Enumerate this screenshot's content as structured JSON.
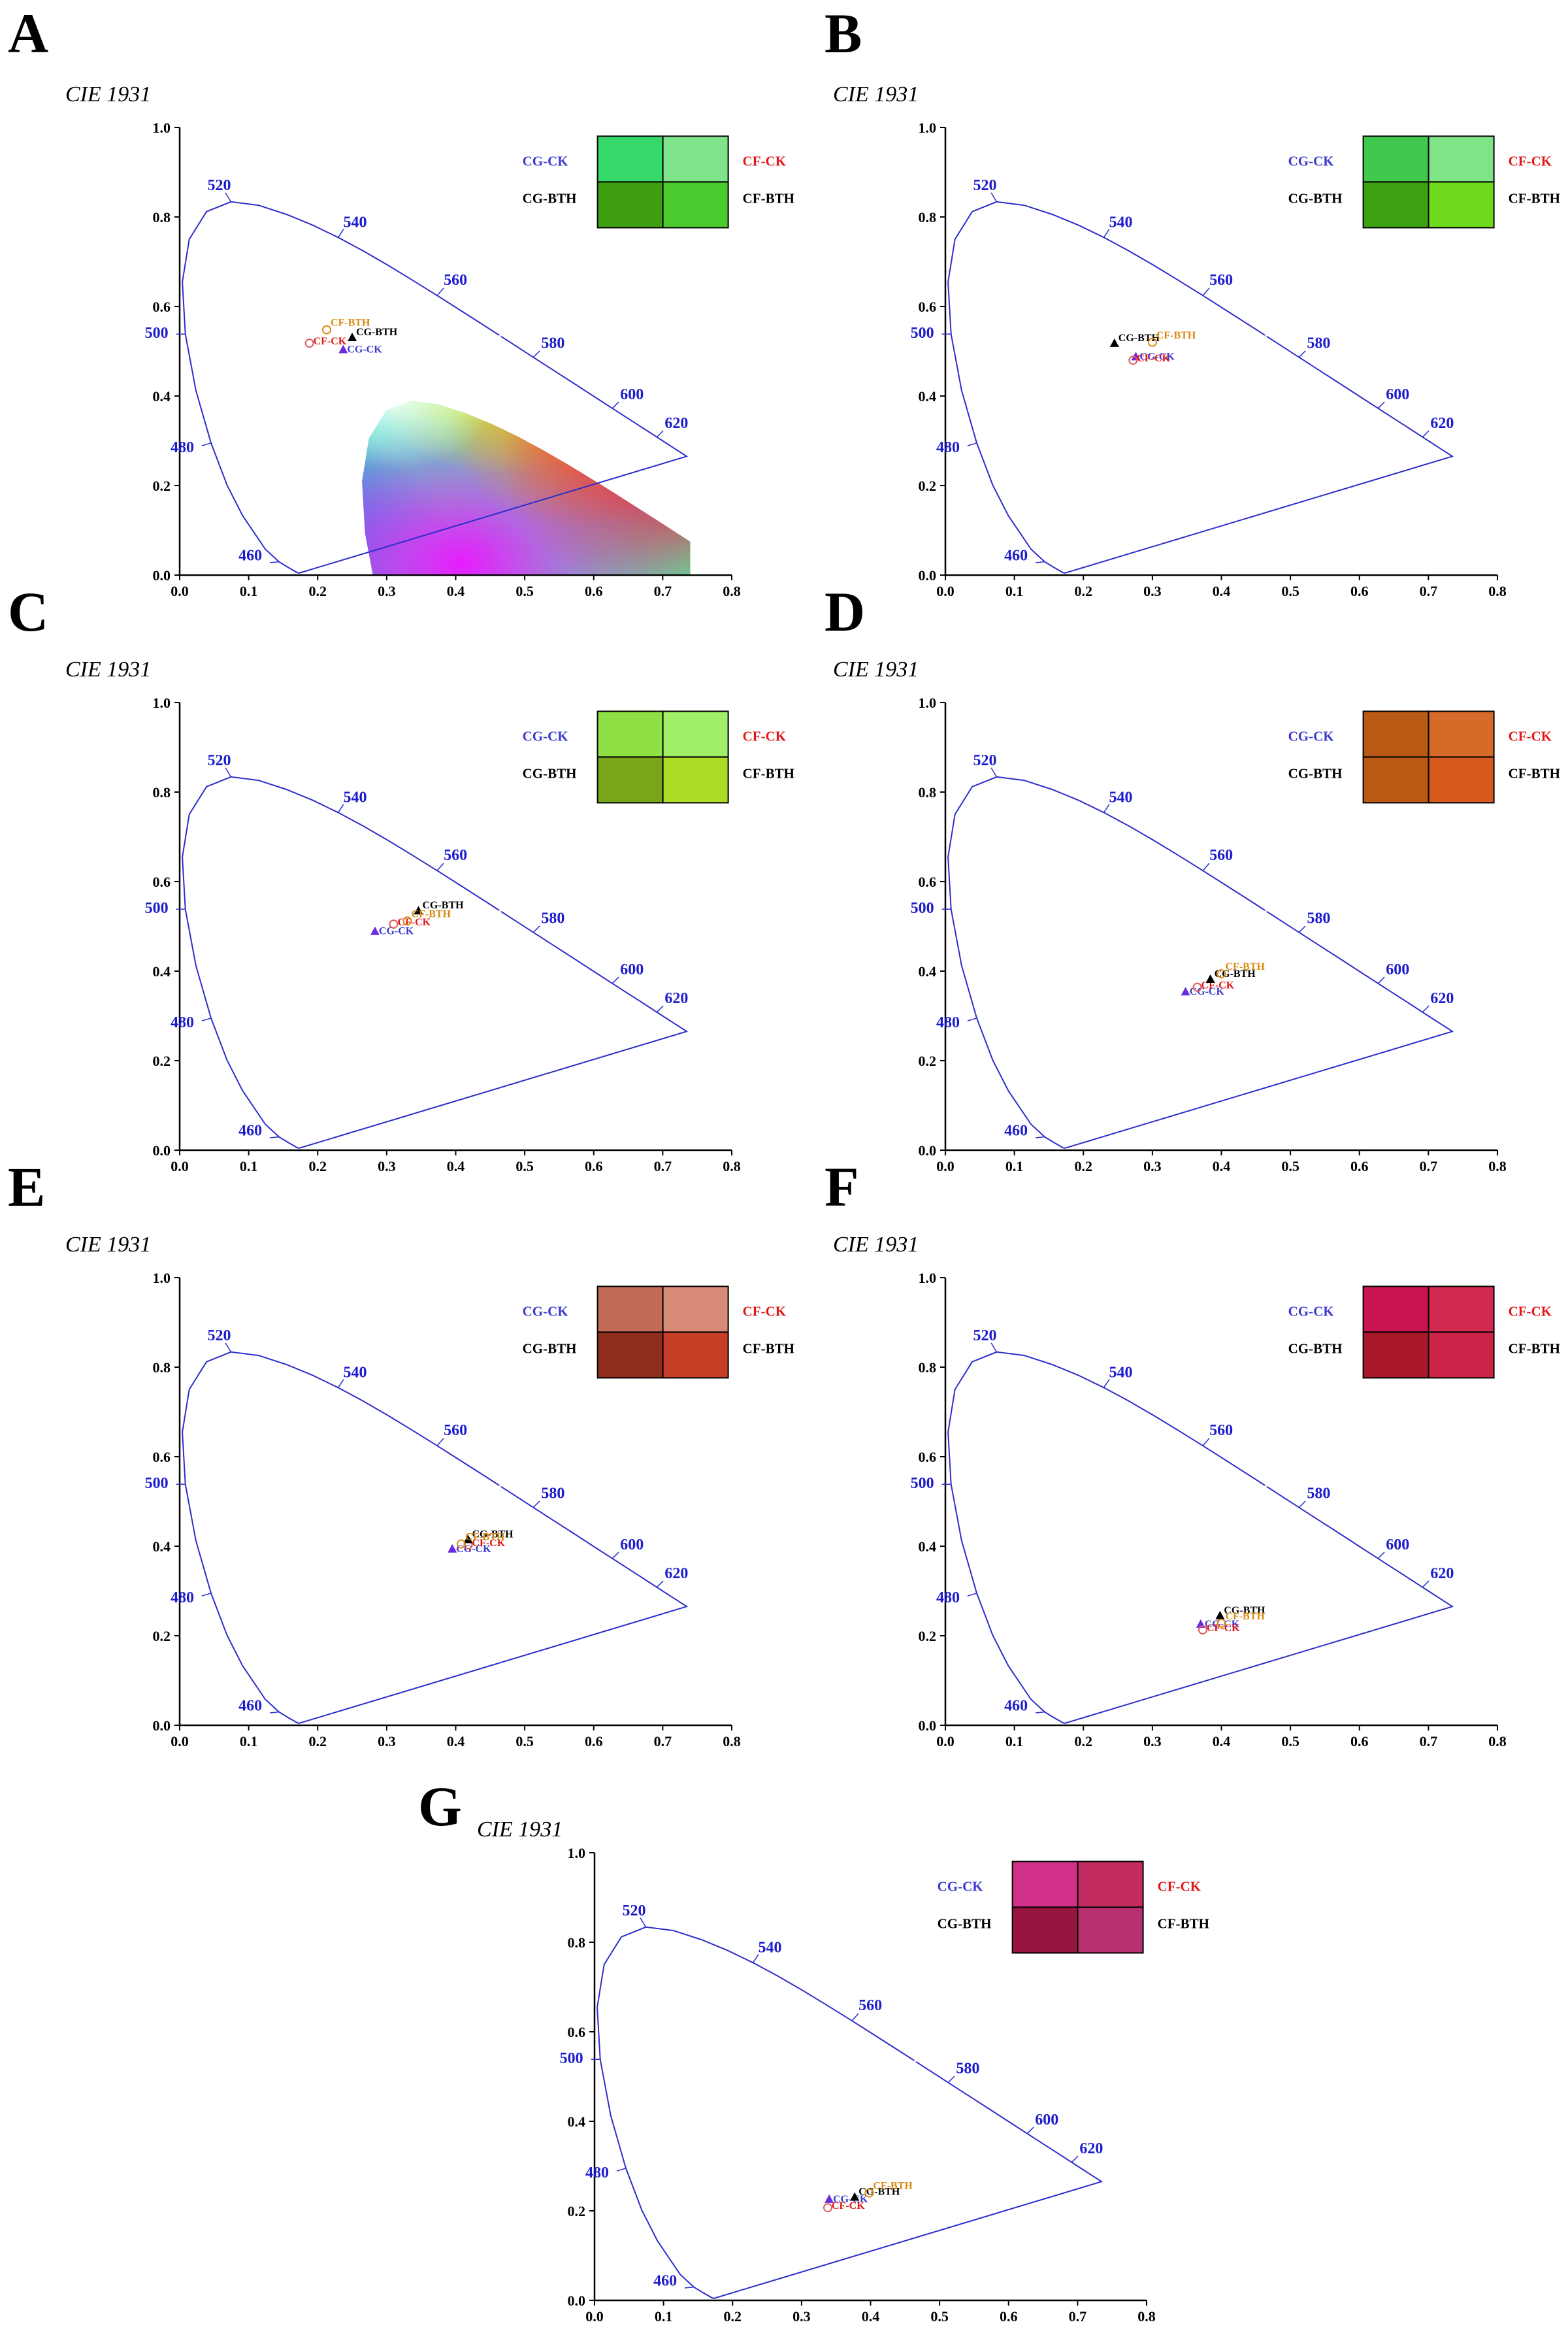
{
  "figure": {
    "chart_title": "CIE 1931",
    "axis_tick_labels": [
      "0.0",
      "0.1",
      "0.2",
      "0.3",
      "0.4",
      "0.5",
      "0.6",
      "0.7",
      "0.8"
    ],
    "axis_y_tick_labels": [
      "0.0",
      "0.2",
      "0.4",
      "0.6",
      "0.8",
      "1.0"
    ],
    "wavelength_labels": [
      "460",
      "480",
      "500",
      "520",
      "540",
      "560",
      "580",
      "600",
      "620"
    ],
    "legend_labels": {
      "cg_ck": "CG-CK",
      "cf_ck": "CF-CK",
      "cg_bth": "CG-BTH",
      "cf_bth": "CF-BTH"
    },
    "colors": {
      "cg_ck_text": "#3a3acf",
      "cf_ck_text": "#e01818",
      "cg_bth_text": "#000000",
      "cf_bth_text": "#d88a10",
      "locus_stroke": "#2d2dcc"
    }
  },
  "chart_data": [
    {
      "panel": "A",
      "type": "scatter",
      "title": "CIE 1931",
      "xlim": [
        0,
        0.8
      ],
      "ylim": [
        0,
        1.0
      ],
      "points": [
        {
          "name": "CG-CK",
          "x": 0.237,
          "y": 0.503,
          "marker": "triangle",
          "color": "#6a2ce0"
        },
        {
          "name": "CF-CK",
          "x": 0.188,
          "y": 0.518,
          "marker": "circle",
          "color": "#e05a5a"
        },
        {
          "name": "CG-BTH",
          "x": 0.25,
          "y": 0.53,
          "marker": "triangle",
          "color": "#000000"
        },
        {
          "name": "CF-BTH",
          "x": 0.213,
          "y": 0.548,
          "marker": "circle",
          "color": "#d88a10"
        }
      ],
      "swatches": {
        "cg_ck": "#37d86a",
        "cf_ck": "#7fe38a",
        "cg_bth": "#3e9f13",
        "cf_bth": "#4ccb2e"
      }
    },
    {
      "panel": "B",
      "type": "scatter",
      "title": "CIE 1931",
      "xlim": [
        0,
        0.8
      ],
      "ylim": [
        0,
        1.0
      ],
      "points": [
        {
          "name": "CG-CK",
          "x": 0.276,
          "y": 0.487,
          "marker": "triangle",
          "color": "#6a2ce0"
        },
        {
          "name": "CF-CK",
          "x": 0.272,
          "y": 0.48,
          "marker": "circle",
          "color": "#e05a5a"
        },
        {
          "name": "CG-BTH",
          "x": 0.245,
          "y": 0.517,
          "marker": "triangle",
          "color": "#000000"
        },
        {
          "name": "CF-BTH",
          "x": 0.3,
          "y": 0.52,
          "marker": "circle",
          "color": "#d88a10"
        }
      ],
      "swatches": {
        "cg_ck": "#40c84f",
        "cf_ck": "#7ee487",
        "cg_bth": "#3da112",
        "cf_bth": "#6fdb1d"
      }
    },
    {
      "panel": "C",
      "type": "scatter",
      "title": "CIE 1931",
      "xlim": [
        0,
        0.8
      ],
      "ylim": [
        0,
        1.0
      ],
      "points": [
        {
          "name": "CG-CK",
          "x": 0.283,
          "y": 0.488,
          "marker": "triangle",
          "color": "#6a2ce0"
        },
        {
          "name": "CF-CK",
          "x": 0.31,
          "y": 0.505,
          "marker": "circle",
          "color": "#e05a5a"
        },
        {
          "name": "CG-BTH",
          "x": 0.346,
          "y": 0.534,
          "marker": "triangle",
          "color": "#000000"
        },
        {
          "name": "CF-BTH",
          "x": 0.33,
          "y": 0.512,
          "marker": "circle",
          "color": "#d88a10"
        }
      ],
      "swatches": {
        "cg_ck": "#8ee044",
        "cf_ck": "#a0ef68",
        "cg_bth": "#78a51a",
        "cf_bth": "#aedb26"
      }
    },
    {
      "panel": "D",
      "type": "scatter",
      "title": "CIE 1931",
      "xlim": [
        0,
        0.8
      ],
      "ylim": [
        0,
        1.0
      ],
      "points": [
        {
          "name": "CG-CK",
          "x": 0.348,
          "y": 0.353,
          "marker": "triangle",
          "color": "#6a2ce0"
        },
        {
          "name": "CF-CK",
          "x": 0.365,
          "y": 0.364,
          "marker": "circle",
          "color": "#e05a5a"
        },
        {
          "name": "CG-BTH",
          "x": 0.384,
          "y": 0.381,
          "marker": "triangle",
          "color": "#000000"
        },
        {
          "name": "CF-BTH",
          "x": 0.4,
          "y": 0.394,
          "marker": "circle",
          "color": "#d88a10"
        }
      ],
      "swatches": {
        "cg_ck": "#b85a14",
        "cf_ck": "#d66a28",
        "cg_bth": "#b85a14",
        "cf_bth": "#d65a1e"
      }
    },
    {
      "panel": "E",
      "type": "scatter",
      "title": "CIE 1931",
      "xlim": [
        0,
        0.8
      ],
      "ylim": [
        0,
        1.0
      ],
      "points": [
        {
          "name": "CG-CK",
          "x": 0.395,
          "y": 0.393,
          "marker": "triangle",
          "color": "#6a2ce0"
        },
        {
          "name": "CF-CK",
          "x": 0.418,
          "y": 0.403,
          "marker": "circle",
          "color": "#e05a5a"
        },
        {
          "name": "CG-BTH",
          "x": 0.418,
          "y": 0.414,
          "marker": "triangle",
          "color": "#000000"
        },
        {
          "name": "CF-BTH",
          "x": 0.408,
          "y": 0.405,
          "marker": "circle",
          "color": "#d88a10"
        }
      ],
      "swatches": {
        "cg_ck": "#c16a55",
        "cf_ck": "#d88a78",
        "cg_bth": "#8e2c1e",
        "cf_bth": "#c63e26"
      }
    },
    {
      "panel": "F",
      "type": "scatter",
      "title": "CIE 1931",
      "xlim": [
        0,
        0.8
      ],
      "ylim": [
        0,
        1.0
      ],
      "points": [
        {
          "name": "CG-CK",
          "x": 0.37,
          "y": 0.225,
          "marker": "triangle",
          "color": "#6a2ce0"
        },
        {
          "name": "CF-CK",
          "x": 0.373,
          "y": 0.213,
          "marker": "circle",
          "color": "#e05a5a"
        },
        {
          "name": "CG-BTH",
          "x": 0.398,
          "y": 0.244,
          "marker": "triangle",
          "color": "#000000"
        },
        {
          "name": "CF-BTH",
          "x": 0.4,
          "y": 0.228,
          "marker": "circle",
          "color": "#d88a10"
        }
      ],
      "swatches": {
        "cg_ck": "#c81450",
        "cf_ck": "#d02a50",
        "cg_bth": "#a8182a",
        "cf_bth": "#cc2448"
      }
    },
    {
      "panel": "G",
      "type": "scatter",
      "title": "CIE 1931",
      "xlim": [
        0,
        0.8
      ],
      "ylim": [
        0,
        1.0
      ],
      "points": [
        {
          "name": "CG-CK",
          "x": 0.34,
          "y": 0.225,
          "marker": "triangle",
          "color": "#6a2ce0"
        },
        {
          "name": "CF-CK",
          "x": 0.338,
          "y": 0.207,
          "marker": "circle",
          "color": "#e05a5a"
        },
        {
          "name": "CG-BTH",
          "x": 0.377,
          "y": 0.23,
          "marker": "triangle",
          "color": "#000000"
        },
        {
          "name": "CF-BTH",
          "x": 0.398,
          "y": 0.24,
          "marker": "circle",
          "color": "#d88a10"
        }
      ],
      "swatches": {
        "cg_ck": "#d03088",
        "cf_ck": "#c22c60",
        "cg_bth": "#961440",
        "cf_bth": "#b83070"
      }
    }
  ]
}
